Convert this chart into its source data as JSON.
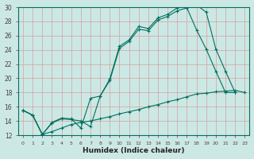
{
  "title": "",
  "xlabel": "Humidex (Indice chaleur)",
  "background_color": "#cce8e4",
  "grid_color": "#e0b0b0",
  "line_color": "#007060",
  "xlim": [
    -0.5,
    23.5
  ],
  "ylim": [
    12,
    30
  ],
  "xticks": [
    0,
    1,
    2,
    3,
    4,
    5,
    6,
    7,
    8,
    9,
    10,
    11,
    12,
    13,
    14,
    15,
    16,
    17,
    18,
    19,
    20,
    21,
    22,
    23
  ],
  "yticks": [
    12,
    14,
    16,
    18,
    20,
    22,
    24,
    26,
    28,
    30
  ],
  "line1_x": [
    0,
    1,
    2,
    3,
    4,
    5,
    6,
    7,
    8,
    9,
    10,
    11,
    12,
    13,
    14,
    15,
    16,
    17,
    18,
    19,
    20,
    21,
    22
  ],
  "line1_y": [
    15.5,
    14.8,
    12.1,
    13.7,
    14.3,
    14.2,
    14.0,
    13.2,
    17.5,
    19.9,
    24.5,
    25.4,
    27.3,
    27.0,
    28.5,
    29.0,
    29.9,
    30.2,
    30.3,
    29.3,
    24.1,
    21.0,
    18.0
  ],
  "line2_x": [
    0,
    1,
    2,
    3,
    4,
    5,
    6,
    7,
    8,
    9,
    10,
    11,
    12,
    13,
    14,
    15,
    16,
    17,
    18,
    19,
    20,
    21,
    22
  ],
  "line2_y": [
    15.5,
    14.8,
    12.1,
    13.8,
    14.4,
    14.3,
    13.0,
    17.2,
    17.5,
    19.7,
    24.2,
    25.2,
    26.9,
    26.7,
    28.2,
    28.7,
    29.5,
    29.9,
    26.8,
    24.1,
    21.0,
    18.0,
    18.0
  ],
  "line3_x": [
    0,
    1,
    2,
    3,
    4,
    5,
    6,
    7,
    8,
    9,
    10,
    11,
    12,
    13,
    14,
    15,
    16,
    17,
    18,
    19,
    20,
    21,
    22,
    23
  ],
  "line3_y": [
    15.5,
    14.8,
    12.1,
    12.5,
    13.0,
    13.5,
    13.8,
    14.0,
    14.3,
    14.6,
    15.0,
    15.3,
    15.6,
    16.0,
    16.3,
    16.7,
    17.0,
    17.4,
    17.8,
    17.9,
    18.1,
    18.2,
    18.3,
    18.0
  ]
}
